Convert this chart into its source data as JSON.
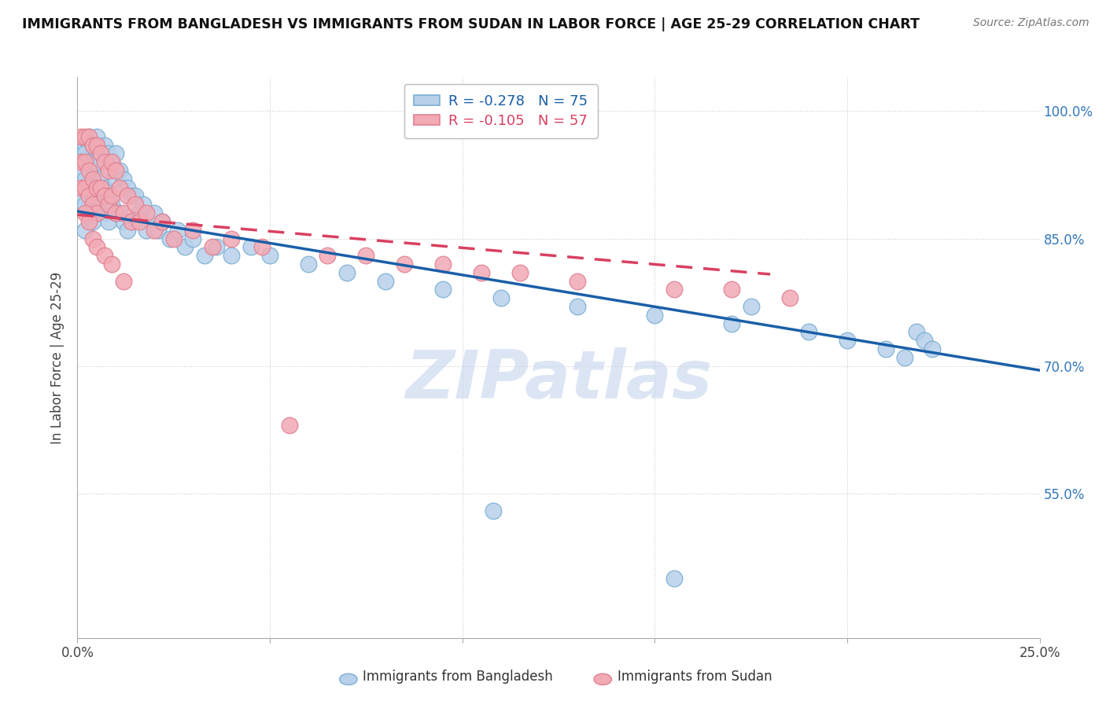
{
  "title": "IMMIGRANTS FROM BANGLADESH VS IMMIGRANTS FROM SUDAN IN LABOR FORCE | AGE 25-29 CORRELATION CHART",
  "source": "Source: ZipAtlas.com",
  "ylabel": "In Labor Force | Age 25-29",
  "xlim": [
    0.0,
    0.25
  ],
  "ylim": [
    0.38,
    1.04
  ],
  "ytick_labels_right": [
    "100.0%",
    "85.0%",
    "70.0%",
    "55.0%"
  ],
  "yticks_right": [
    1.0,
    0.85,
    0.7,
    0.55
  ],
  "bangladesh_color": "#b8d0ea",
  "sudan_color": "#f2aab5",
  "bangladesh_edge": "#7aafd4",
  "sudan_edge": "#e08090",
  "trend_bangladesh_color": "#1a5fa8",
  "trend_sudan_color": "#d94060",
  "r_bangladesh": -0.278,
  "n_bangladesh": 75,
  "r_sudan": -0.105,
  "n_sudan": 57,
  "legend_bangladesh": "Immigrants from Bangladesh",
  "legend_sudan": "Immigrants from Sudan",
  "watermark": "ZIPatlas",
  "watermark_color": "#c5d5ee",
  "background_color": "#ffffff",
  "grid_color": "#cccccc",
  "trend_bd_x0": 0.0,
  "trend_bd_y0": 0.882,
  "trend_bd_x1": 0.25,
  "trend_bd_y1": 0.695,
  "trend_sd_x0": 0.0,
  "trend_sd_y0": 0.878,
  "trend_sd_x1": 0.18,
  "trend_sd_y1": 0.808,
  "bangladesh_x": [
    0.001,
    0.001,
    0.001,
    0.002,
    0.002,
    0.002,
    0.002,
    0.002,
    0.003,
    0.003,
    0.003,
    0.003,
    0.004,
    0.004,
    0.004,
    0.004,
    0.005,
    0.005,
    0.005,
    0.005,
    0.006,
    0.006,
    0.006,
    0.007,
    0.007,
    0.007,
    0.008,
    0.008,
    0.008,
    0.009,
    0.009,
    0.01,
    0.01,
    0.01,
    0.011,
    0.011,
    0.012,
    0.012,
    0.013,
    0.013,
    0.014,
    0.015,
    0.016,
    0.017,
    0.018,
    0.02,
    0.021,
    0.022,
    0.024,
    0.026,
    0.028,
    0.03,
    0.033,
    0.036,
    0.04,
    0.045,
    0.05,
    0.06,
    0.07,
    0.08,
    0.095,
    0.11,
    0.13,
    0.15,
    0.17,
    0.19,
    0.2,
    0.21,
    0.215,
    0.218,
    0.22,
    0.222,
    0.108,
    0.155,
    0.175
  ],
  "bangladesh_y": [
    0.96,
    0.93,
    0.9,
    0.96,
    0.95,
    0.92,
    0.89,
    0.86,
    0.97,
    0.94,
    0.91,
    0.88,
    0.96,
    0.93,
    0.9,
    0.87,
    0.97,
    0.94,
    0.91,
    0.88,
    0.95,
    0.92,
    0.89,
    0.96,
    0.91,
    0.88,
    0.95,
    0.9,
    0.87,
    0.94,
    0.89,
    0.95,
    0.92,
    0.88,
    0.93,
    0.88,
    0.92,
    0.87,
    0.91,
    0.86,
    0.9,
    0.9,
    0.88,
    0.89,
    0.86,
    0.88,
    0.86,
    0.87,
    0.85,
    0.86,
    0.84,
    0.85,
    0.83,
    0.84,
    0.83,
    0.84,
    0.83,
    0.82,
    0.81,
    0.8,
    0.79,
    0.78,
    0.77,
    0.76,
    0.75,
    0.74,
    0.73,
    0.72,
    0.71,
    0.74,
    0.73,
    0.72,
    0.53,
    0.45,
    0.77
  ],
  "sudan_x": [
    0.001,
    0.001,
    0.001,
    0.002,
    0.002,
    0.002,
    0.003,
    0.003,
    0.003,
    0.004,
    0.004,
    0.004,
    0.005,
    0.005,
    0.005,
    0.006,
    0.006,
    0.007,
    0.007,
    0.008,
    0.008,
    0.009,
    0.009,
    0.01,
    0.01,
    0.011,
    0.012,
    0.013,
    0.014,
    0.015,
    0.016,
    0.018,
    0.02,
    0.022,
    0.025,
    0.03,
    0.035,
    0.04,
    0.048,
    0.055,
    0.065,
    0.075,
    0.085,
    0.095,
    0.105,
    0.115,
    0.13,
    0.155,
    0.17,
    0.185,
    0.002,
    0.003,
    0.004,
    0.005,
    0.007,
    0.009,
    0.012
  ],
  "sudan_y": [
    0.97,
    0.94,
    0.91,
    0.97,
    0.94,
    0.91,
    0.97,
    0.93,
    0.9,
    0.96,
    0.92,
    0.89,
    0.96,
    0.91,
    0.88,
    0.95,
    0.91,
    0.94,
    0.9,
    0.93,
    0.89,
    0.94,
    0.9,
    0.93,
    0.88,
    0.91,
    0.88,
    0.9,
    0.87,
    0.89,
    0.87,
    0.88,
    0.86,
    0.87,
    0.85,
    0.86,
    0.84,
    0.85,
    0.84,
    0.63,
    0.83,
    0.83,
    0.82,
    0.82,
    0.81,
    0.81,
    0.8,
    0.79,
    0.79,
    0.78,
    0.88,
    0.87,
    0.85,
    0.84,
    0.83,
    0.82,
    0.8
  ]
}
